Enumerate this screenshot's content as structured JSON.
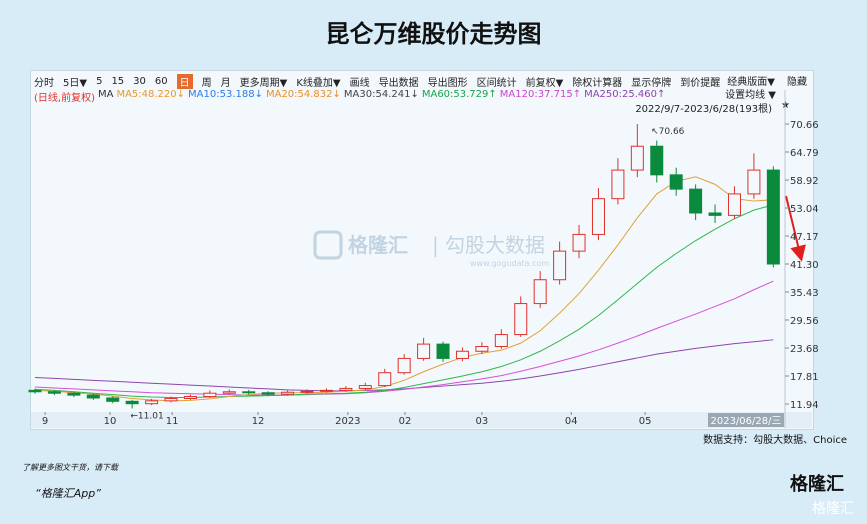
{
  "title": "昆仑万维股价走势图",
  "toolbar": [
    "分时",
    "5日▼",
    "5",
    "15",
    "30",
    "60",
    "日",
    "周",
    "月",
    "更多周期▼",
    "K线叠加▼",
    "画线",
    "导出数据",
    "导出图形",
    "区间统计",
    "前复权▼",
    "除权计算器",
    "显示停牌",
    "到价提醒"
  ],
  "toolbar_active": 6,
  "toolbar_right": [
    "经典版面▼",
    "隐藏"
  ],
  "ma_legend": [
    {
      "label": "(日线,前复权)",
      "color": "#e0302a"
    },
    {
      "label": "MA",
      "color": "#333333"
    },
    {
      "label": "MA5:48.220↓",
      "color": "#e89a2c"
    },
    {
      "label": "MA10:53.188↓",
      "color": "#2c7be5"
    },
    {
      "label": "MA20:54.832↓",
      "color": "#e8902a"
    },
    {
      "label": "MA30:54.241↓",
      "color": "#444444"
    },
    {
      "label": "MA60:53.729↑",
      "color": "#1aa34a"
    },
    {
      "label": "MA120:37.715↑",
      "color": "#cc44cc"
    },
    {
      "label": "MA250:25.460↑",
      "color": "#8e44ad"
    }
  ],
  "ma_settings": "设置均线 ▼",
  "range_label": "2022/9/7-2023/6/28(193根)",
  "watermark": [
    "格隆汇",
    "勾股大数据",
    "www.gogudata.com"
  ],
  "source": "数据支持：勾股大数据、Choice",
  "promo": [
    "了解更多图文干货，请下载",
    "“格隆汇App”"
  ],
  "logo": [
    "格隆汇",
    "格隆汇"
  ],
  "chart_data": {
    "type": "candlestick",
    "x": [
      0,
      5,
      10,
      15,
      20,
      25,
      30,
      35,
      40,
      45,
      50,
      55,
      60,
      65,
      70,
      75,
      80,
      85,
      90,
      95,
      100,
      105,
      110,
      115,
      120,
      125,
      130,
      135,
      140,
      145,
      150,
      155,
      160,
      165,
      170,
      175,
      180,
      185,
      190
    ],
    "open": [
      14.8,
      14.5,
      14.2,
      13.8,
      13.2,
      12.5,
      12.0,
      12.6,
      13.1,
      13.5,
      14.2,
      14.5,
      14.3,
      14.0,
      14.4,
      14.6,
      14.8,
      15.2,
      15.8,
      18.5,
      21.5,
      24.5,
      21.5,
      23.0,
      24.0,
      26.5,
      33.0,
      38.0,
      44.0,
      47.5,
      55.0,
      61.0,
      66.0,
      60.0,
      57.0,
      52.0,
      51.5,
      56.0,
      61.0
    ],
    "high": [
      15.2,
      14.8,
      14.5,
      14.1,
      13.5,
      12.8,
      13.0,
      13.5,
      13.9,
      14.8,
      15.0,
      14.9,
      14.6,
      14.8,
      15.0,
      15.2,
      15.7,
      16.4,
      19.3,
      22.4,
      25.8,
      25.0,
      23.8,
      24.9,
      27.6,
      34.5,
      39.8,
      46.0,
      49.5,
      57.2,
      63.5,
      70.66,
      67.2,
      61.5,
      58.0,
      53.8,
      57.6,
      64.5,
      61.8
    ],
    "low": [
      14.1,
      13.8,
      13.4,
      12.8,
      12.1,
      11.01,
      11.7,
      12.3,
      12.8,
      13.2,
      13.9,
      13.9,
      13.6,
      13.7,
      14.1,
      14.3,
      14.5,
      14.9,
      15.5,
      18.1,
      21.0,
      20.8,
      20.9,
      22.4,
      23.5,
      26.0,
      32.1,
      37.0,
      42.5,
      46.3,
      53.8,
      59.5,
      58.4,
      55.6,
      50.5,
      49.9,
      50.8,
      55.0,
      40.6
    ],
    "close": [
      14.5,
      14.2,
      13.8,
      13.2,
      12.5,
      12.0,
      12.6,
      13.1,
      13.5,
      14.2,
      14.5,
      14.3,
      14.0,
      14.4,
      14.6,
      14.8,
      15.2,
      15.8,
      18.5,
      21.5,
      24.5,
      21.5,
      23.0,
      24.0,
      26.5,
      33.0,
      38.0,
      44.0,
      47.5,
      55.0,
      61.0,
      66.0,
      60.0,
      57.0,
      52.0,
      51.5,
      56.0,
      61.0,
      41.3
    ],
    "up_color": "#e0302a",
    "down_color": "#0a8a3c",
    "ma_lines": [
      {
        "color": "#8e44ad",
        "values": [
          17.5,
          17.3,
          17.1,
          16.9,
          16.7,
          16.5,
          16.3,
          16.1,
          15.9,
          15.7,
          15.5,
          15.3,
          15.1,
          14.9,
          14.8,
          14.7,
          14.7,
          14.8,
          14.9,
          15.1,
          15.4,
          15.7,
          16.0,
          16.3,
          16.7,
          17.2,
          17.8,
          18.5,
          19.2,
          20.0,
          20.8,
          21.6,
          22.4,
          23.0,
          23.6,
          24.1,
          24.6,
          25.0,
          25.4
        ]
      },
      {
        "color": "#d84fd8",
        "values": [
          15.5,
          15.3,
          15.1,
          14.9,
          14.7,
          14.5,
          14.3,
          14.2,
          14.1,
          14.0,
          13.9,
          13.8,
          13.8,
          13.8,
          13.9,
          14.0,
          14.1,
          14.3,
          14.6,
          15.0,
          15.5,
          16.0,
          16.6,
          17.2,
          17.9,
          18.8,
          19.8,
          20.9,
          22.0,
          23.3,
          24.7,
          26.2,
          27.8,
          29.3,
          30.8,
          32.4,
          34.0,
          35.9,
          37.7
        ]
      },
      {
        "color": "#2fb84a",
        "values": [
          15.0,
          14.8,
          14.5,
          14.2,
          13.9,
          13.6,
          13.4,
          13.3,
          13.3,
          13.4,
          13.5,
          13.6,
          13.7,
          13.8,
          14.0,
          14.1,
          14.2,
          14.4,
          14.8,
          15.4,
          16.2,
          17.0,
          17.8,
          18.7,
          19.8,
          21.2,
          23.0,
          25.2,
          27.6,
          30.5,
          33.8,
          37.2,
          40.6,
          43.5,
          46.2,
          48.6,
          50.8,
          52.6,
          53.7
        ]
      },
      {
        "color": "#e0a23a",
        "values": [
          14.8,
          14.6,
          14.3,
          14.0,
          13.6,
          13.1,
          12.8,
          12.6,
          12.7,
          13.0,
          13.5,
          13.9,
          14.2,
          14.3,
          14.3,
          14.4,
          14.6,
          14.9,
          15.6,
          16.9,
          18.7,
          20.3,
          21.7,
          22.6,
          23.2,
          24.7,
          27.3,
          31.0,
          35.1,
          40.0,
          45.3,
          51.0,
          56.0,
          58.6,
          59.6,
          58.0,
          55.0,
          54.5,
          54.8
        ]
      }
    ],
    "xlim": [
      0,
      193
    ],
    "xticks": [
      {
        "value": 2.6,
        "label": "9"
      },
      {
        "value": 19.3,
        "label": "10"
      },
      {
        "value": 35.3,
        "label": "11"
      },
      {
        "value": 57.4,
        "label": "12"
      },
      {
        "value": 80.5,
        "label": "2023"
      },
      {
        "value": 95.2,
        "label": "02"
      },
      {
        "value": 115,
        "label": "03"
      },
      {
        "value": 138,
        "label": "04"
      },
      {
        "value": 157,
        "label": "05"
      }
    ],
    "end_date": "2023/06/28/三",
    "ylim": [
      10.26,
      71.92
    ],
    "yticks": [
      70.66,
      64.79,
      58.92,
      53.04,
      47.17,
      {
        "value": 41.3,
        "label": "41.30"
      },
      35.43,
      29.56,
      23.68,
      17.81,
      11.94
    ],
    "annotations": [
      {
        "text": "↖70.66",
        "x": 157,
        "y": 70.66
      },
      {
        "text": "←11.01",
        "x": 23,
        "y": 11.01
      }
    ]
  }
}
